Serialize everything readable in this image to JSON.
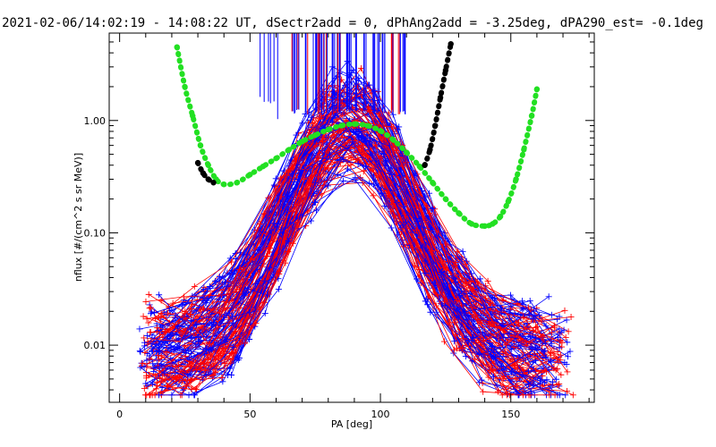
{
  "chart_data": {
    "type": "line",
    "title": "2021-02-06/14:02:19 - 14:08:22 UT, dSectr2add = 0, dPhAng2add = -3.25deg, dPA290_est=  -0.1deg",
    "xlabel": "PA [deg]",
    "ylabel": "nflux [#/(cm^2 s sr MeV)]",
    "xlim": [
      -4,
      182
    ],
    "ylim": [
      0.0031,
      6.0
    ],
    "yscale": "log",
    "x_ticks": [
      0,
      50,
      100,
      150
    ],
    "x_tick_labels": [
      "0",
      "50",
      "100",
      "150"
    ],
    "y_ticks": [
      0.01,
      0.1,
      1.0
    ],
    "y_tick_labels": [
      "0.01",
      "0.10",
      "1.00"
    ],
    "grid": false,
    "colors": {
      "red": "#ff0000",
      "blue": "#0000ff",
      "green": "#22e022",
      "black": "#000000",
      "frame": "#000000"
    },
    "series": [
      {
        "color": "green",
        "style": "thick-dots",
        "x": [
          22,
          25,
          28,
          31,
          34,
          37,
          40,
          45,
          50,
          55,
          60,
          65,
          70,
          75,
          80,
          85,
          90,
          95,
          100,
          105,
          110,
          115,
          120,
          125,
          130,
          135,
          140,
          143,
          146,
          149,
          152,
          155,
          158,
          160
        ],
        "y": [
          4.5,
          2.0,
          1.1,
          0.6,
          0.4,
          0.3,
          0.27,
          0.28,
          0.33,
          0.39,
          0.46,
          0.55,
          0.65,
          0.74,
          0.83,
          0.9,
          0.93,
          0.9,
          0.81,
          0.67,
          0.52,
          0.39,
          0.28,
          0.2,
          0.15,
          0.12,
          0.115,
          0.12,
          0.14,
          0.19,
          0.3,
          0.55,
          1.1,
          1.9
        ]
      },
      {
        "color": "black",
        "style": "thick-dots",
        "x": [
          30,
          32,
          34,
          36
        ],
        "y": [
          0.42,
          0.34,
          0.3,
          0.28
        ]
      },
      {
        "color": "black",
        "style": "thick-dots",
        "x": [
          117,
          119,
          121,
          123,
          125,
          127
        ],
        "y": [
          0.4,
          0.55,
          0.9,
          1.6,
          2.8,
          4.8
        ]
      }
    ]
  }
}
